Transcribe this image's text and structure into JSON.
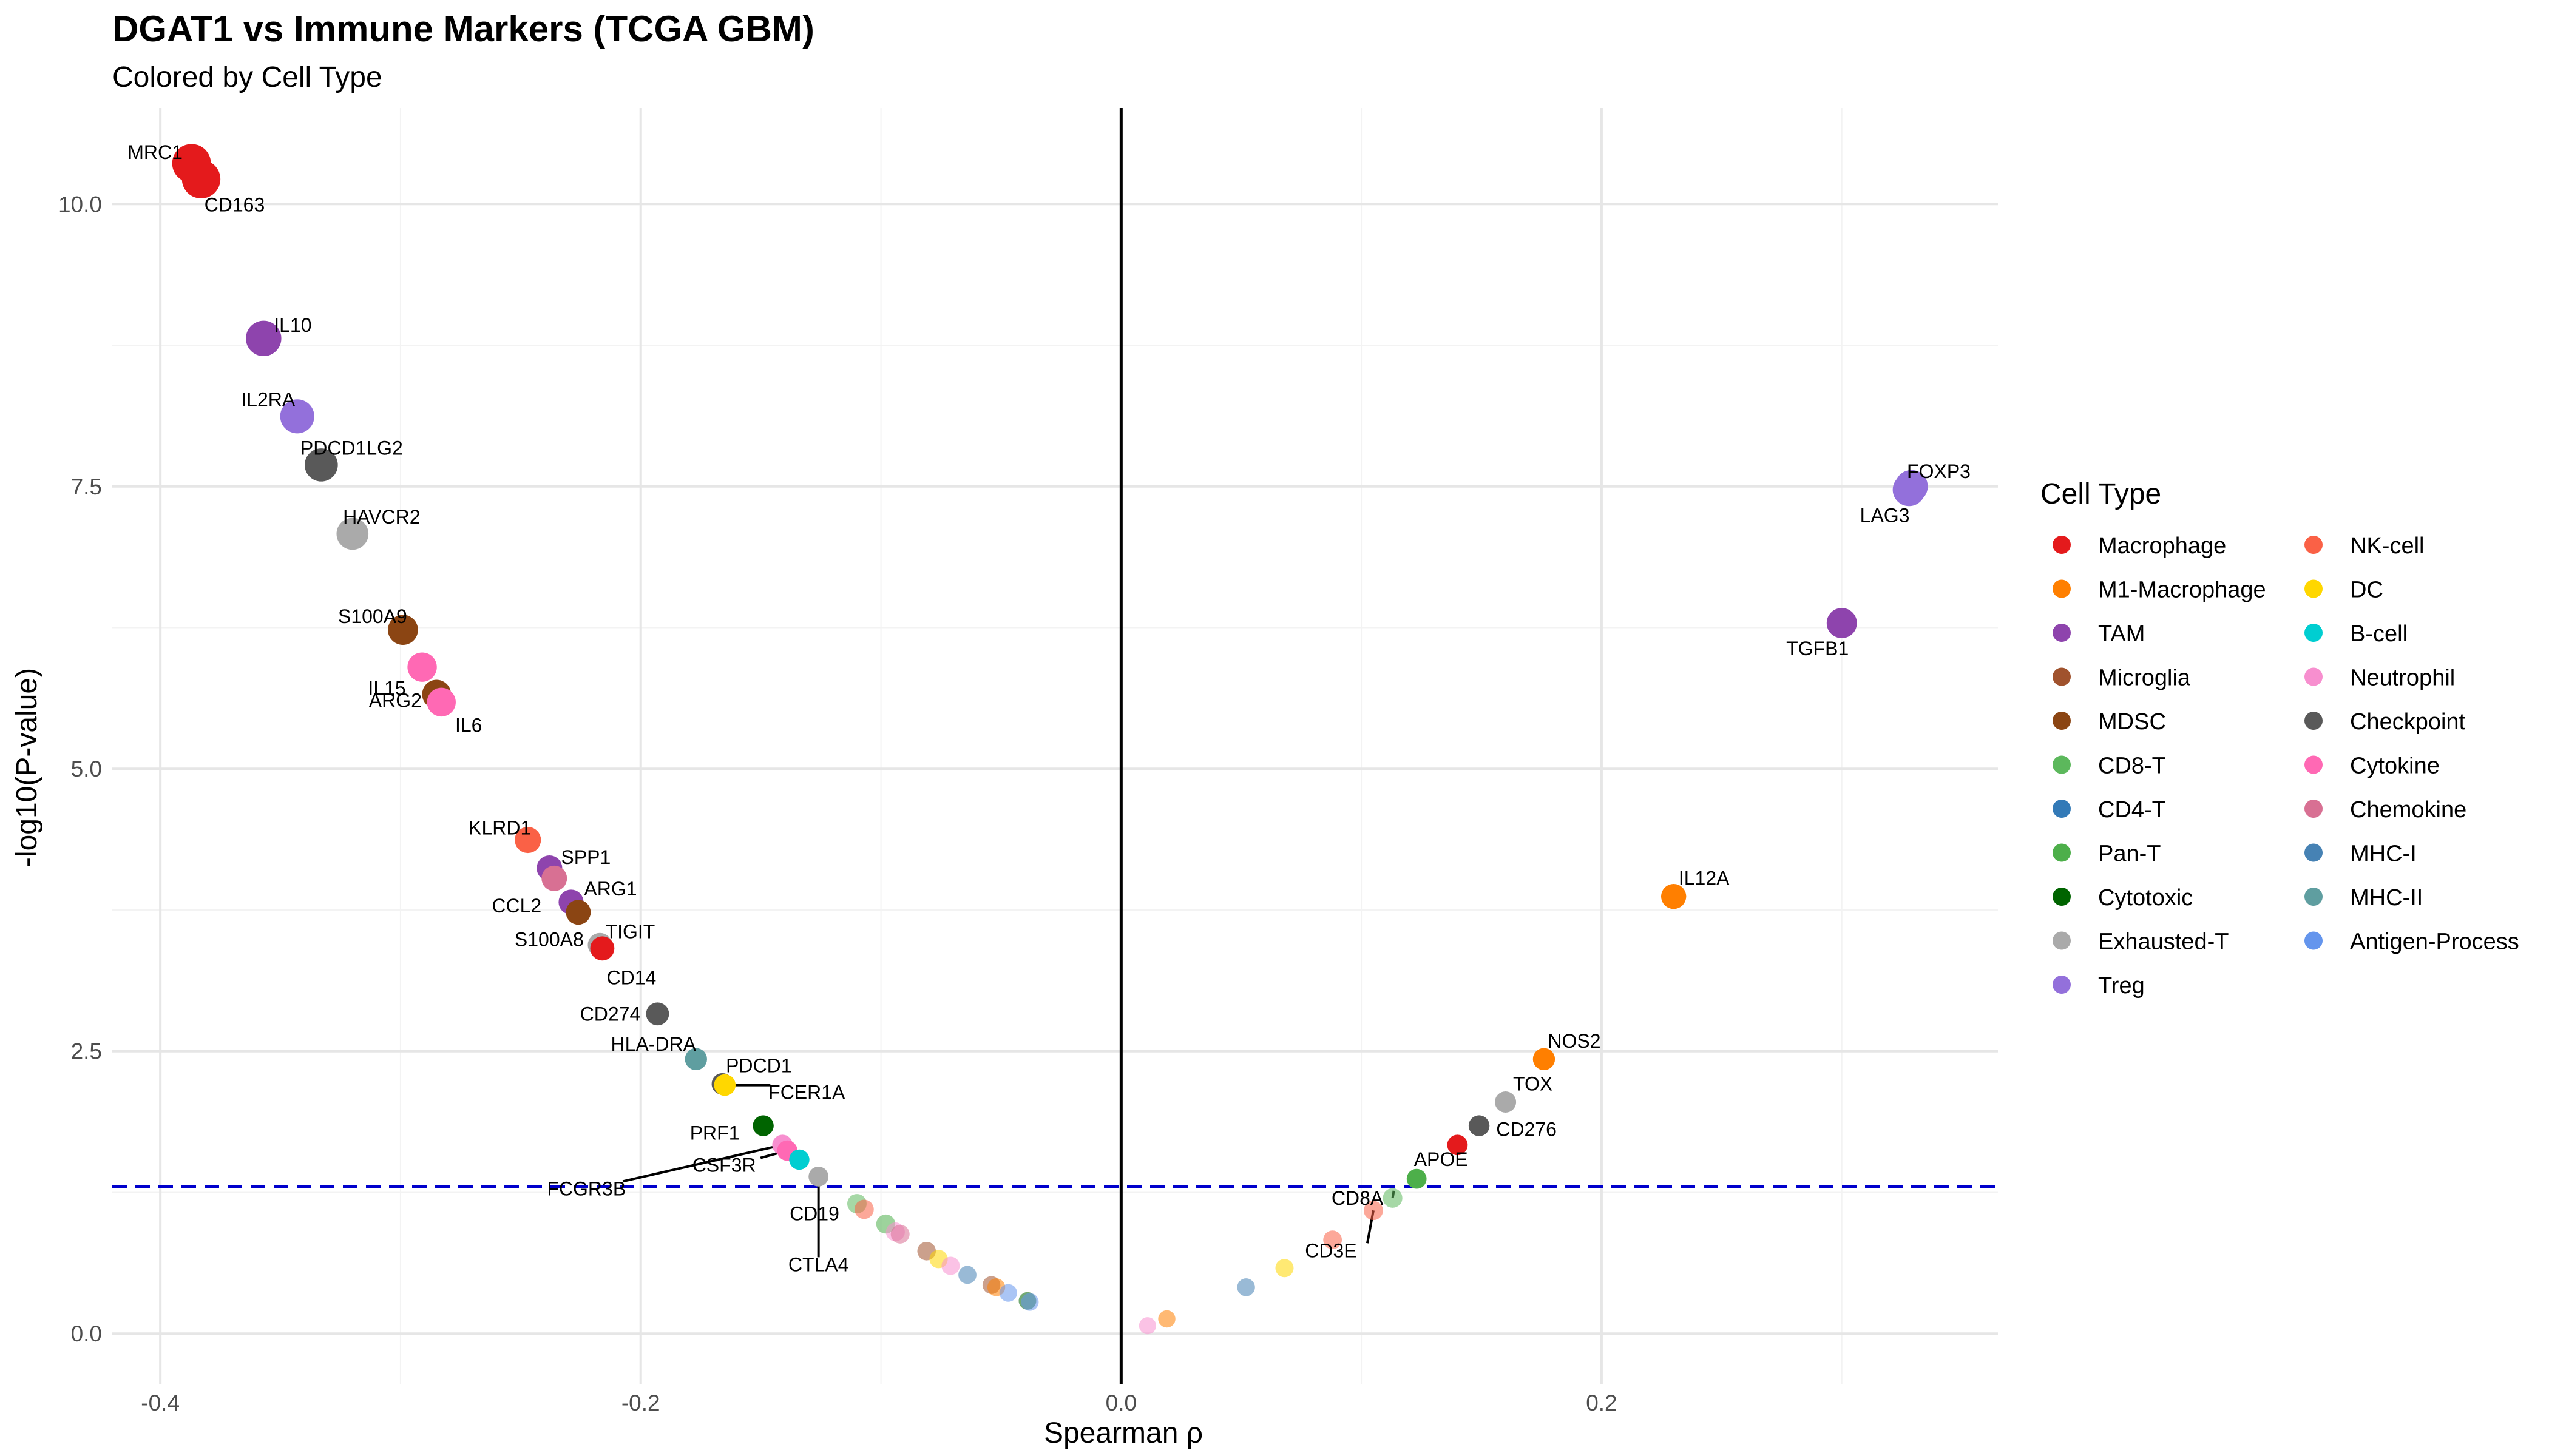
{
  "chart_data": {
    "type": "scatter",
    "title": "DGAT1 vs Immune Markers (TCGA GBM)",
    "subtitle": "Colored by Cell Type",
    "xlabel": "Spearman ρ",
    "ylabel": "-log10(P-value)",
    "xlim": [
      -0.42,
      0.365
    ],
    "ylim": [
      -0.45,
      10.85
    ],
    "x_ticks": [
      {
        "v": -0.4,
        "label": "-0.4"
      },
      {
        "v": -0.2,
        "label": "-0.2"
      },
      {
        "v": 0.0,
        "label": "0.0"
      },
      {
        "v": 0.2,
        "label": "0.2"
      }
    ],
    "y_ticks": [
      {
        "v": 0,
        "label": "0.0"
      },
      {
        "v": 2.5,
        "label": "2.5"
      },
      {
        "v": 5.0,
        "label": "5.0"
      },
      {
        "v": 7.5,
        "label": "7.5"
      },
      {
        "v": 10.0,
        "label": "10.0"
      }
    ],
    "threshold_y": 1.3,
    "threshold_color": "#0000cc",
    "grid": true,
    "legend_position": "right",
    "legend": {
      "title": "Cell Type",
      "entries": [
        {
          "name": "Macrophage",
          "color": "#e41a1c"
        },
        {
          "name": "M1-Macrophage",
          "color": "#ff7f00"
        },
        {
          "name": "TAM",
          "color": "#8e44ad"
        },
        {
          "name": "Microglia",
          "color": "#a0522d"
        },
        {
          "name": "MDSC",
          "color": "#8b4513"
        },
        {
          "name": "CD8-T",
          "color": "#5cb85c"
        },
        {
          "name": "CD4-T",
          "color": "#337ab7"
        },
        {
          "name": "Pan-T",
          "color": "#4daf4a"
        },
        {
          "name": "Cytotoxic",
          "color": "#006400"
        },
        {
          "name": "Exhausted-T",
          "color": "#aaaaaa"
        },
        {
          "name": "Treg",
          "color": "#9370db"
        },
        {
          "name": "NK-cell",
          "color": "#fa6146"
        },
        {
          "name": "DC",
          "color": "#ffd700"
        },
        {
          "name": "B-cell",
          "color": "#00ced1"
        },
        {
          "name": "Neutrophil",
          "color": "#f78fcf"
        },
        {
          "name": "Checkpoint",
          "color": "#595959"
        },
        {
          "name": "Cytokine",
          "color": "#ff69b4"
        },
        {
          "name": "Chemokine",
          "color": "#d87093"
        },
        {
          "name": "MHC-I",
          "color": "#4682b4"
        },
        {
          "name": "MHC-II",
          "color": "#5f9ea0"
        },
        {
          "name": "Antigen-Process",
          "color": "#6495ed"
        }
      ]
    },
    "points": [
      {
        "gene": "MRC1",
        "x": -0.387,
        "y": 10.36,
        "type": "Macrophage",
        "labeled": true
      },
      {
        "gene": "CD163",
        "x": -0.383,
        "y": 10.22,
        "type": "Macrophage",
        "labeled": true
      },
      {
        "gene": "IL10",
        "x": -0.357,
        "y": 8.81,
        "type": "TAM",
        "labeled": true
      },
      {
        "gene": "IL2RA",
        "x": -0.343,
        "y": 8.12,
        "type": "Treg",
        "labeled": true
      },
      {
        "gene": "PDCD1LG2",
        "x": -0.333,
        "y": 7.69,
        "type": "Checkpoint",
        "labeled": true
      },
      {
        "gene": "HAVCR2",
        "x": -0.32,
        "y": 7.08,
        "type": "Exhausted-T",
        "labeled": true
      },
      {
        "gene": "S100A9",
        "x": -0.299,
        "y": 6.23,
        "type": "MDSC",
        "labeled": true
      },
      {
        "gene": "IL15",
        "x": -0.291,
        "y": 5.9,
        "type": "Cytokine",
        "labeled": true
      },
      {
        "gene": "ARG2",
        "x": -0.285,
        "y": 5.66,
        "type": "MDSC",
        "labeled": true
      },
      {
        "gene": "IL6",
        "x": -0.283,
        "y": 5.59,
        "type": "Cytokine",
        "labeled": true
      },
      {
        "gene": "KLRD1",
        "x": -0.247,
        "y": 4.37,
        "type": "NK-cell",
        "labeled": true
      },
      {
        "gene": "SPP1",
        "x": -0.238,
        "y": 4.12,
        "type": "TAM",
        "labeled": true
      },
      {
        "gene": "CCL2",
        "x": -0.236,
        "y": 4.03,
        "type": "Chemokine",
        "labeled": true
      },
      {
        "gene": "ARG1",
        "x": -0.229,
        "y": 3.82,
        "type": "TAM",
        "labeled": true
      },
      {
        "gene": "S100A8",
        "x": -0.226,
        "y": 3.73,
        "type": "MDSC",
        "labeled": true
      },
      {
        "gene": "TIGIT",
        "x": -0.217,
        "y": 3.44,
        "type": "Exhausted-T",
        "labeled": true
      },
      {
        "gene": "CD14",
        "x": -0.216,
        "y": 3.41,
        "type": "Macrophage",
        "labeled": true
      },
      {
        "gene": "CD274",
        "x": -0.193,
        "y": 2.83,
        "type": "Checkpoint",
        "labeled": true
      },
      {
        "gene": "HLA-DRA",
        "x": -0.177,
        "y": 2.43,
        "type": "MHC-II",
        "labeled": true
      },
      {
        "gene": "PDCD1",
        "x": -0.166,
        "y": 2.21,
        "type": "Checkpoint",
        "labeled": true
      },
      {
        "gene": "FCER1A",
        "x": -0.165,
        "y": 2.2,
        "type": "DC",
        "labeled": true
      },
      {
        "gene": "PRF1",
        "x": -0.149,
        "y": 1.84,
        "type": "Cytotoxic",
        "labeled": true
      },
      {
        "gene": "FCGR3B",
        "x": -0.141,
        "y": 1.67,
        "type": "Neutrophil",
        "labeled": true
      },
      {
        "gene": "CSF3R",
        "x": -0.139,
        "y": 1.62,
        "type": "Cytokine",
        "labeled": true
      },
      {
        "gene": "CD19",
        "x": -0.134,
        "y": 1.54,
        "type": "B-cell",
        "labeled": true
      },
      {
        "gene": "CTLA4",
        "x": -0.126,
        "y": 1.39,
        "type": "Exhausted-T",
        "labeled": true
      },
      {
        "gene": "",
        "x": -0.11,
        "y": 1.15,
        "type": "CD8-T",
        "labeled": false
      },
      {
        "gene": "",
        "x": -0.107,
        "y": 1.1,
        "type": "NK-cell",
        "labeled": false
      },
      {
        "gene": "",
        "x": -0.098,
        "y": 0.97,
        "type": "Pan-T",
        "labeled": false
      },
      {
        "gene": "",
        "x": -0.094,
        "y": 0.9,
        "type": "Neutrophil",
        "labeled": false
      },
      {
        "gene": "",
        "x": -0.092,
        "y": 0.88,
        "type": "Chemokine",
        "labeled": false
      },
      {
        "gene": "",
        "x": -0.081,
        "y": 0.73,
        "type": "Microglia",
        "labeled": false
      },
      {
        "gene": "",
        "x": -0.076,
        "y": 0.66,
        "type": "DC",
        "labeled": false
      },
      {
        "gene": "",
        "x": -0.071,
        "y": 0.6,
        "type": "Neutrophil",
        "labeled": false
      },
      {
        "gene": "",
        "x": -0.064,
        "y": 0.52,
        "type": "MHC-I",
        "labeled": false
      },
      {
        "gene": "",
        "x": -0.054,
        "y": 0.43,
        "type": "Microglia",
        "labeled": false
      },
      {
        "gene": "",
        "x": -0.052,
        "y": 0.41,
        "type": "M1-Macrophage",
        "labeled": false
      },
      {
        "gene": "",
        "x": -0.047,
        "y": 0.36,
        "type": "Antigen-Process",
        "labeled": false
      },
      {
        "gene": "",
        "x": -0.039,
        "y": 0.29,
        "type": "Cytotoxic",
        "labeled": false
      },
      {
        "gene": "",
        "x": -0.038,
        "y": 0.28,
        "type": "Antigen-Process",
        "labeled": false
      },
      {
        "gene": "",
        "x": 0.011,
        "y": 0.07,
        "type": "Neutrophil",
        "labeled": false
      },
      {
        "gene": "",
        "x": 0.019,
        "y": 0.13,
        "type": "M1-Macrophage",
        "labeled": false
      },
      {
        "gene": "",
        "x": 0.052,
        "y": 0.41,
        "type": "MHC-I",
        "labeled": false
      },
      {
        "gene": "",
        "x": 0.068,
        "y": 0.58,
        "type": "DC",
        "labeled": false
      },
      {
        "gene": "",
        "x": 0.088,
        "y": 0.83,
        "type": "NK-cell",
        "labeled": false
      },
      {
        "gene": "CD3E",
        "x": 0.105,
        "y": 1.09,
        "type": "NK-cell",
        "labeled": true
      },
      {
        "gene": "CD8A",
        "x": 0.113,
        "y": 1.2,
        "type": "CD8-T",
        "labeled": true
      },
      {
        "gene": "APOE",
        "x": 0.123,
        "y": 1.37,
        "type": "Pan-T",
        "labeled": true
      },
      {
        "gene": "",
        "x": 0.14,
        "y": 1.67,
        "type": "Macrophage",
        "labeled": false
      },
      {
        "gene": "CD276",
        "x": 0.149,
        "y": 1.84,
        "type": "Checkpoint",
        "labeled": true
      },
      {
        "gene": "TOX",
        "x": 0.16,
        "y": 2.05,
        "type": "Exhausted-T",
        "labeled": true
      },
      {
        "gene": "NOS2",
        "x": 0.176,
        "y": 2.43,
        "type": "M1-Macrophage",
        "labeled": true
      },
      {
        "gene": "IL12A",
        "x": 0.23,
        "y": 3.87,
        "type": "M1-Macrophage",
        "labeled": true
      },
      {
        "gene": "TGFB1",
        "x": 0.3,
        "y": 6.29,
        "type": "TAM",
        "labeled": true
      },
      {
        "gene": "FOXP3",
        "x": 0.329,
        "y": 7.5,
        "type": "Treg",
        "labeled": true
      },
      {
        "gene": "LAG3",
        "x": 0.328,
        "y": 7.47,
        "type": "Treg",
        "labeled": true
      }
    ]
  }
}
